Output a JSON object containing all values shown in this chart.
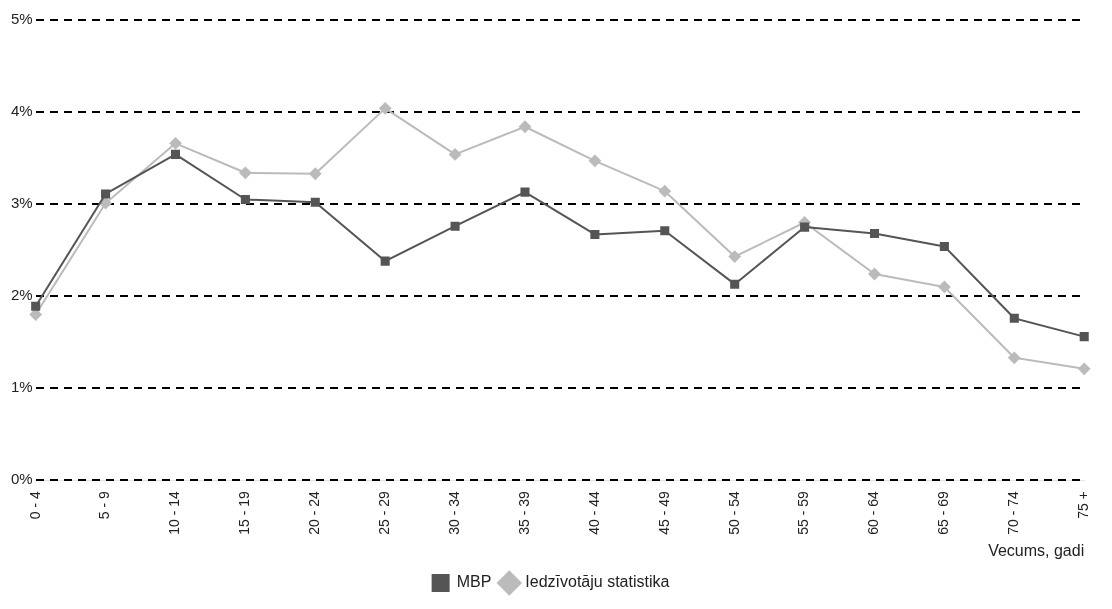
{
  "chart_data": {
    "type": "line",
    "xlabel": "Vecums, gadi",
    "categories": [
      "0 - 4",
      "5 - 9",
      "10 - 14",
      "15 - 19",
      "20 - 24",
      "25 - 29",
      "30 - 34",
      "35 - 39",
      "40 - 44",
      "45 - 49",
      "50 - 54",
      "55 - 59",
      "60 - 64",
      "65 - 69",
      "70 - 74",
      "75 +"
    ],
    "series": [
      {
        "name": "MBP",
        "color": "#555555",
        "marker": "square",
        "values": [
          1.89,
          3.11,
          3.54,
          3.05,
          3.02,
          2.38,
          2.76,
          3.13,
          2.67,
          2.71,
          2.13,
          2.75,
          2.68,
          2.54,
          1.76,
          1.56
        ]
      },
      {
        "name": "Iedzīvotāju statistika",
        "color": "#bbbbbb",
        "marker": "diamond",
        "values": [
          1.8,
          3.01,
          3.66,
          3.34,
          3.33,
          4.04,
          3.54,
          3.84,
          3.47,
          3.14,
          2.43,
          2.8,
          2.24,
          2.1,
          1.33,
          1.21
        ]
      }
    ],
    "ylim": [
      0,
      5
    ],
    "yticks": [
      {
        "value": 0,
        "label": "0%"
      },
      {
        "value": 1,
        "label": "1%"
      },
      {
        "value": 2,
        "label": "2%"
      },
      {
        "value": 3,
        "label": "3%"
      },
      {
        "value": 4,
        "label": "4%"
      },
      {
        "value": 5,
        "label": "5%"
      }
    ],
    "grid": "y",
    "legend": "bottom",
    "line_style": "solid"
  }
}
